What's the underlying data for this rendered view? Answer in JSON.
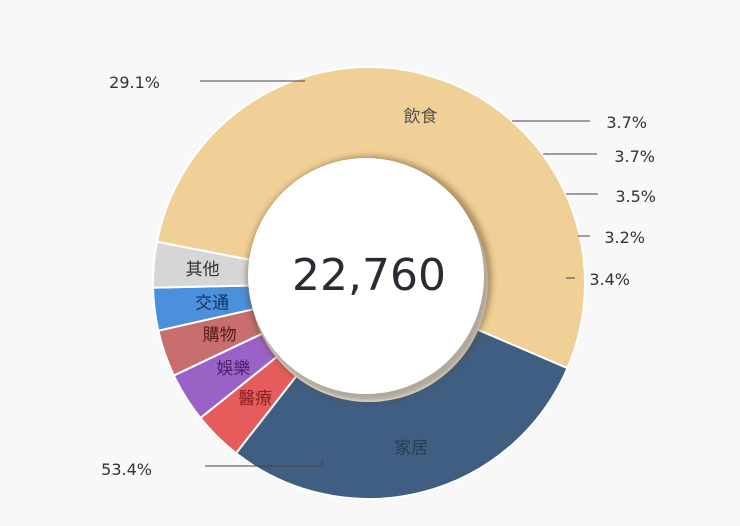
{
  "chart_data": {
    "type": "pie",
    "variant": "donut",
    "center_text": "22,760",
    "slices": [
      {
        "name": "飲食",
        "percent_text": "53.4%",
        "value": 53.4,
        "color": "#f0d096",
        "label_color": "#555555"
      },
      {
        "name": "家居",
        "percent_text": "29.1%",
        "value": 29.1,
        "color": "#3f5e82",
        "label_color": "#2c3e55"
      },
      {
        "name": "醫療",
        "percent_text": "3.7%",
        "value": 3.7,
        "color": "#e65c5c",
        "label_color": "#8a2020"
      },
      {
        "name": "娛樂",
        "percent_text": "3.7%",
        "value": 3.7,
        "color": "#9a62c6",
        "label_color": "#4a2268"
      },
      {
        "name": "購物",
        "percent_text": "3.5%",
        "value": 3.5,
        "color": "#c86e6e",
        "label_color": "#5a1e1e"
      },
      {
        "name": "交通",
        "percent_text": "3.2%",
        "value": 3.2,
        "color": "#4a90dc",
        "label_color": "#12345a"
      },
      {
        "name": "其他",
        "percent_text": "3.4%",
        "value": 3.4,
        "color": "#d6d6d6",
        "label_color": "#333333"
      }
    ]
  }
}
